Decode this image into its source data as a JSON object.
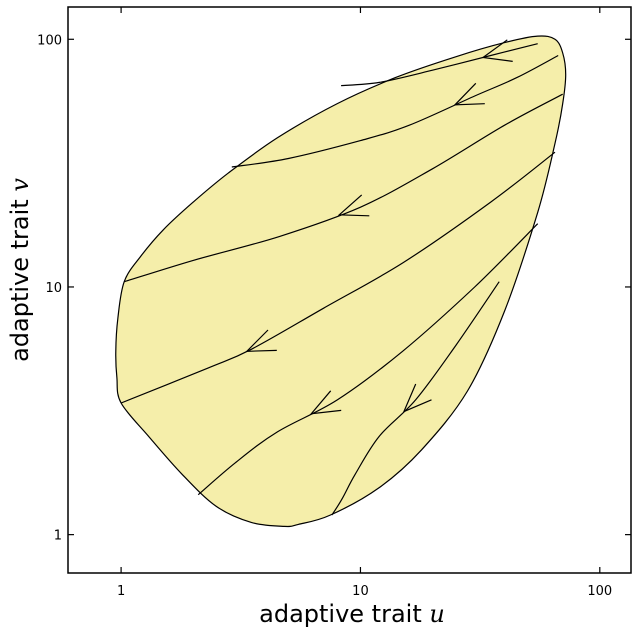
{
  "chart_data": {
    "type": "line",
    "title": "",
    "xlabel": "adaptive trait",
    "xlabel_var": "u",
    "ylabel": "adaptive trait",
    "ylabel_var": "v",
    "xscale": "log",
    "yscale": "log",
    "xlim": [
      0.6,
      135
    ],
    "ylim": [
      0.7,
      135
    ],
    "xticks": [
      {
        "value": 1,
        "label": "1"
      },
      {
        "value": 10,
        "label": "10"
      },
      {
        "value": 100,
        "label": "100"
      }
    ],
    "yticks": [
      {
        "value": 1,
        "label": "1"
      },
      {
        "value": 10,
        "label": "10"
      },
      {
        "value": 100,
        "label": "100"
      }
    ],
    "grid": false,
    "region_color": "#f5eeaa",
    "region_boundary": [
      [
        1.0,
        3.4
      ],
      [
        0.96,
        4.3
      ],
      [
        0.95,
        5.5
      ],
      [
        0.97,
        7.5
      ],
      [
        1.03,
        10.5
      ],
      [
        1.2,
        13.2
      ],
      [
        1.5,
        17.0
      ],
      [
        2.0,
        22.0
      ],
      [
        2.8,
        28.8
      ],
      [
        4.5,
        40.0
      ],
      [
        8.0,
        55.0
      ],
      [
        14.0,
        70.0
      ],
      [
        25.0,
        85.0
      ],
      [
        40.0,
        97.0
      ],
      [
        55.0,
        103.0
      ],
      [
        65.0,
        100.0
      ],
      [
        70.0,
        88.0
      ],
      [
        72.0,
        72.0
      ],
      [
        70.0,
        55.0
      ],
      [
        65.0,
        38.0
      ],
      [
        55.0,
        20.0
      ],
      [
        40.0,
        8.0
      ],
      [
        28.0,
        3.8
      ],
      [
        18.0,
        2.2
      ],
      [
        12.0,
        1.55
      ],
      [
        7.5,
        1.2
      ],
      [
        5.5,
        1.1
      ],
      [
        4.8,
        1.08
      ],
      [
        3.5,
        1.12
      ],
      [
        2.5,
        1.3
      ],
      [
        1.8,
        1.75
      ],
      [
        1.3,
        2.5
      ],
      [
        1.0,
        3.4
      ]
    ],
    "series": [
      {
        "points": [
          [
            55.0,
            96.0
          ],
          [
            35.0,
            86.0
          ],
          [
            20.0,
            75.0
          ],
          [
            12.0,
            67.0
          ],
          [
            8.3,
            65.0
          ]
        ],
        "arrow_at": 0.28
      },
      {
        "points": [
          [
            67.0,
            86.0
          ],
          [
            45.0,
            70.0
          ],
          [
            30.0,
            59.0
          ],
          [
            16.0,
            45.0
          ],
          [
            10.0,
            39.0
          ],
          [
            5.0,
            33.0
          ],
          [
            2.9,
            30.5
          ]
        ],
        "arrow_at": 0.33
      },
      {
        "points": [
          [
            70.0,
            60.0
          ],
          [
            40.0,
            45.0
          ],
          [
            20.0,
            30.0
          ],
          [
            10.0,
            21.0
          ],
          [
            4.6,
            16.0
          ],
          [
            2.0,
            12.8
          ],
          [
            1.03,
            10.5
          ]
        ],
        "arrow_at": 0.53
      },
      {
        "points": [
          [
            65.0,
            35.0
          ],
          [
            35.0,
            22.0
          ],
          [
            15.0,
            12.5
          ],
          [
            7.0,
            8.2
          ],
          [
            3.5,
            5.6
          ],
          [
            2.3,
            4.7
          ],
          [
            1.0,
            3.4
          ]
        ],
        "arrow_at": 0.73
      },
      {
        "points": [
          [
            55.0,
            18.0
          ],
          [
            30.0,
            10.0
          ],
          [
            15.0,
            5.5
          ],
          [
            8.0,
            3.5
          ],
          [
            4.5,
            2.6
          ],
          [
            3.0,
            1.95
          ],
          [
            2.1,
            1.45
          ]
        ],
        "arrow_at": 0.68
      },
      {
        "points": [
          [
            38.0,
            10.5
          ],
          [
            25.0,
            5.8
          ],
          [
            17.0,
            3.5
          ],
          [
            12.0,
            2.5
          ],
          [
            9.5,
            1.75
          ],
          [
            8.4,
            1.4
          ],
          [
            7.6,
            1.2
          ]
        ],
        "arrow_at": 0.56
      }
    ]
  }
}
